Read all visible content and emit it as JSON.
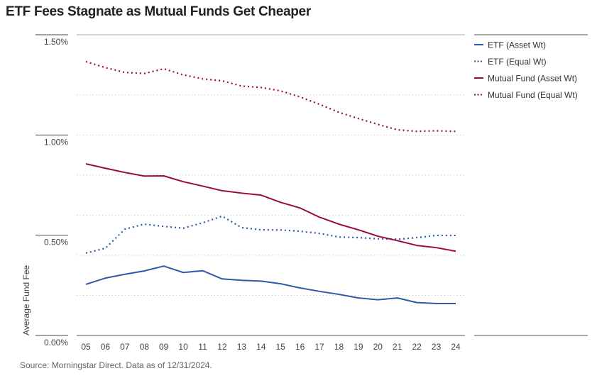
{
  "chart_data": {
    "type": "line",
    "title": "ETF Fees Stagnate as Mutual Funds Get Cheaper",
    "xlabel": "",
    "ylabel": "Average Fund Fee",
    "source": "Source: Morningstar Direct. Data as of 12/31/2024.",
    "ylim": [
      0,
      1.5
    ],
    "y_ticks": [
      {
        "value": 1.5,
        "label": "1.50%"
      },
      {
        "value": 1.0,
        "label": "1.00%"
      },
      {
        "value": 0.5,
        "label": "0.50%"
      },
      {
        "value": 0.0,
        "label": "0.00%"
      }
    ],
    "gridlines": [
      0.2,
      0.4,
      0.6,
      0.8,
      1.0,
      1.2
    ],
    "legend_position": "right",
    "categories": [
      "05",
      "06",
      "07",
      "08",
      "09",
      "10",
      "11",
      "12",
      "13",
      "14",
      "15",
      "16",
      "17",
      "18",
      "19",
      "20",
      "21",
      "22",
      "23",
      "24"
    ],
    "series": [
      {
        "name": "ETF (Asset Wt)",
        "color": "#2b5aa6",
        "style": "solid",
        "values": [
          0.255,
          0.286,
          0.305,
          0.322,
          0.346,
          0.314,
          0.323,
          0.282,
          0.275,
          0.271,
          0.258,
          0.237,
          0.22,
          0.205,
          0.187,
          0.178,
          0.187,
          0.164,
          0.159,
          0.159
        ]
      },
      {
        "name": "ETF (Equal Wt)",
        "color": "#2b5aa6",
        "style": "dotted",
        "values": [
          0.411,
          0.435,
          0.53,
          0.555,
          0.544,
          0.535,
          0.562,
          0.595,
          0.538,
          0.527,
          0.526,
          0.52,
          0.509,
          0.491,
          0.488,
          0.482,
          0.48,
          0.488,
          0.499,
          0.499
        ]
      },
      {
        "name": "Mutual Fund (Asset Wt)",
        "color": "#9b0a3c",
        "style": "solid",
        "values": [
          0.856,
          0.834,
          0.813,
          0.795,
          0.796,
          0.767,
          0.745,
          0.722,
          0.71,
          0.7,
          0.664,
          0.636,
          0.59,
          0.555,
          0.527,
          0.495,
          0.473,
          0.449,
          0.438,
          0.42
        ]
      },
      {
        "name": "Mutual Fund (Equal Wt)",
        "color": "#9b0a3c",
        "style": "dotted",
        "values": [
          1.366,
          1.336,
          1.312,
          1.307,
          1.33,
          1.3,
          1.28,
          1.27,
          1.244,
          1.237,
          1.22,
          1.19,
          1.153,
          1.113,
          1.082,
          1.053,
          1.026,
          1.018,
          1.021,
          1.018
        ]
      }
    ]
  }
}
